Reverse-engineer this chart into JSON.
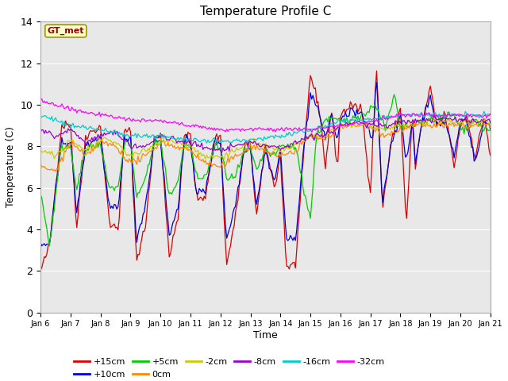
{
  "title": "Temperature Profile C",
  "xlabel": "Time",
  "ylabel": "Temperature (C)",
  "ylim": [
    0,
    14
  ],
  "background_color": "#ffffff",
  "plot_bg_color": "#e8e8e8",
  "series": [
    {
      "label": "+15cm",
      "color": "#dd0000"
    },
    {
      "label": "+10cm",
      "color": "#0000dd"
    },
    {
      "label": "+5cm",
      "color": "#00cc00"
    },
    {
      "label": "0cm",
      "color": "#ff8800"
    },
    {
      "label": "-2cm",
      "color": "#cccc00"
    },
    {
      "label": "-8cm",
      "color": "#9900cc"
    },
    {
      "label": "-16cm",
      "color": "#00cccc"
    },
    {
      "label": "-32cm",
      "color": "#ff00ff"
    }
  ],
  "xtick_labels": [
    "Jan 6",
    "Jan 7",
    "Jan 8",
    "Jan 9",
    "Jan 10",
    "Jan 11",
    "Jan 12",
    "Jan 13",
    "Jan 14",
    "Jan 15",
    "Jan 16",
    "Jan 17",
    "Jan 18",
    "Jan 19",
    "Jan 20",
    "Jan 21"
  ],
  "annotation_text": "GT_met",
  "annotation_color": "#990000",
  "annotation_bg": "#ffffcc",
  "annotation_border": "#999900",
  "ytick_labels": [
    "0",
    "2",
    "4",
    "6",
    "8",
    "10",
    "12",
    "14"
  ],
  "n_days": 15,
  "n_pts": 361
}
